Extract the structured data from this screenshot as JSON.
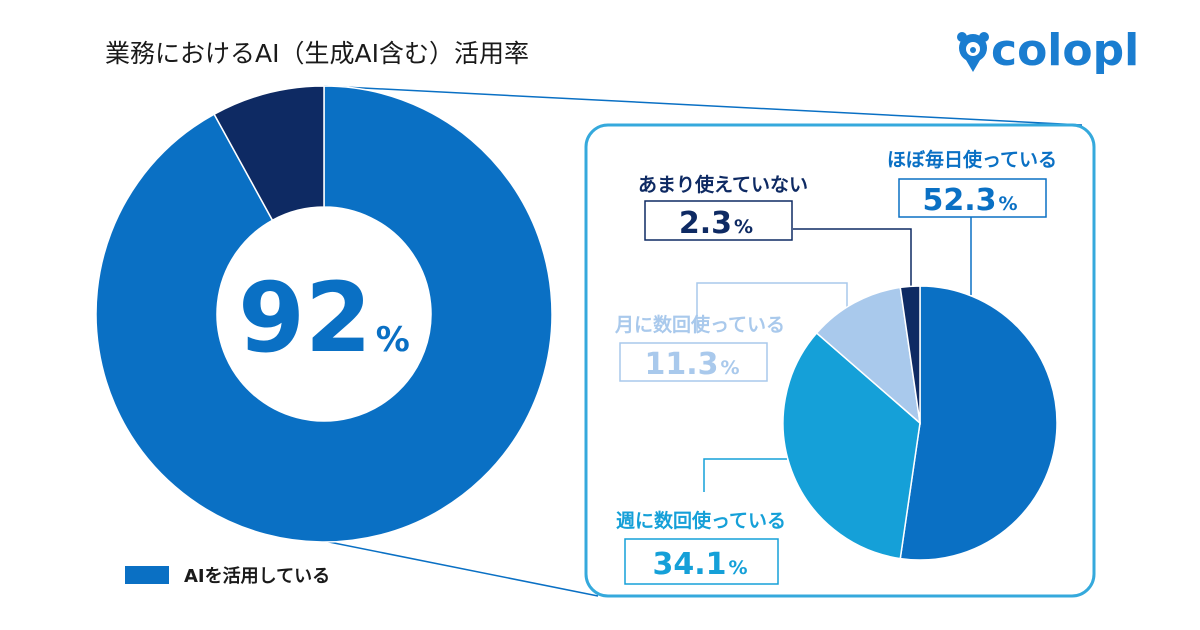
{
  "title": "業務におけるAI（生成AI含む）活用率",
  "logo": {
    "text": "colopl",
    "icon": "colopl-bear-pin-logo"
  },
  "colors": {
    "accent": "#0a70c4",
    "dark": "#0e2a63",
    "mid": "#15a0d8",
    "light": "#a9c9ec",
    "frame": "#35a9dc"
  },
  "chart_data": [
    {
      "type": "pie",
      "variant": "donut",
      "title": "業務におけるAI（生成AI含む）活用率",
      "center_label": {
        "value": "92",
        "unit": "%"
      },
      "slices": [
        {
          "label": "AIを活用している",
          "value": 92,
          "color": "#0a70c4"
        },
        {
          "label": "",
          "value": 8,
          "color": "#0e2a63"
        }
      ],
      "legend": {
        "placement": "bottom-left",
        "entries": [
          "AIを活用している"
        ]
      }
    },
    {
      "type": "pie",
      "title": "",
      "breakdown_of": "AIを活用している",
      "slices": [
        {
          "label": "ほぼ毎日使っている",
          "value": 52.3,
          "display": "52.3",
          "unit": "%",
          "color": "#0a70c4"
        },
        {
          "label": "週に数回使っている",
          "value": 34.1,
          "display": "34.1",
          "unit": "%",
          "color": "#15a0d8"
        },
        {
          "label": "月に数回使っている",
          "value": 11.3,
          "display": "11.3",
          "unit": "%",
          "color": "#a9c9ec"
        },
        {
          "label": "あまり使えていない",
          "value": 2.3,
          "display": "2.3",
          "unit": "%",
          "color": "#0e2a63"
        }
      ]
    }
  ]
}
